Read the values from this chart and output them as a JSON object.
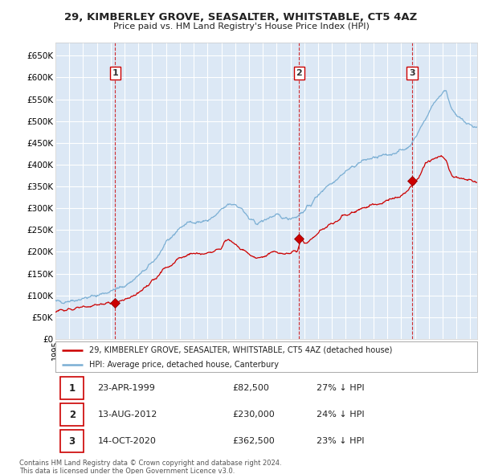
{
  "title": "29, KIMBERLEY GROVE, SEASALTER, WHITSTABLE, CT5 4AZ",
  "subtitle": "Price paid vs. HM Land Registry's House Price Index (HPI)",
  "legend_line1": "29, KIMBERLEY GROVE, SEASALTER, WHITSTABLE, CT5 4AZ (detached house)",
  "legend_line2": "HPI: Average price, detached house, Canterbury",
  "footer1": "Contains HM Land Registry data © Crown copyright and database right 2024.",
  "footer2": "This data is licensed under the Open Government Licence v3.0.",
  "sale_color": "#cc0000",
  "hpi_color": "#7bafd4",
  "background_color": "#ffffff",
  "plot_bg_color": "#dce8f5",
  "grid_color": "#ffffff",
  "ylim": [
    0,
    680000
  ],
  "yticks": [
    0,
    50000,
    100000,
    150000,
    200000,
    250000,
    300000,
    350000,
    400000,
    450000,
    500000,
    550000,
    600000,
    650000
  ],
  "sales": [
    {
      "date_num": 1999.31,
      "price": 82500,
      "label": "1"
    },
    {
      "date_num": 2012.62,
      "price": 230000,
      "label": "2"
    },
    {
      "date_num": 2020.79,
      "price": 362500,
      "label": "3"
    }
  ],
  "sale_annotations": [
    {
      "label": "1",
      "date": "23-APR-1999",
      "price": "£82,500",
      "pct": "27% ↓ HPI"
    },
    {
      "label": "2",
      "date": "13-AUG-2012",
      "price": "£230,000",
      "pct": "24% ↓ HPI"
    },
    {
      "label": "3",
      "date": "14-OCT-2020",
      "price": "£362,500",
      "pct": "23% ↓ HPI"
    }
  ],
  "vline_years": [
    1999.31,
    2012.62,
    2020.79
  ],
  "xmin": 1995.0,
  "xmax": 2025.5,
  "hpi_anchors": [
    [
      1995.0,
      85000
    ],
    [
      1995.5,
      86000
    ],
    [
      1996.0,
      88000
    ],
    [
      1996.5,
      90000
    ],
    [
      1997.0,
      93000
    ],
    [
      1997.5,
      96000
    ],
    [
      1998.0,
      100000
    ],
    [
      1998.5,
      105000
    ],
    [
      1999.0,
      110000
    ],
    [
      1999.5,
      115000
    ],
    [
      2000.0,
      122000
    ],
    [
      2000.5,
      132000
    ],
    [
      2001.0,
      145000
    ],
    [
      2001.5,
      158000
    ],
    [
      2002.0,
      175000
    ],
    [
      2002.5,
      195000
    ],
    [
      2003.0,
      218000
    ],
    [
      2003.5,
      238000
    ],
    [
      2004.0,
      255000
    ],
    [
      2004.5,
      265000
    ],
    [
      2005.0,
      270000
    ],
    [
      2005.5,
      268000
    ],
    [
      2006.0,
      272000
    ],
    [
      2006.5,
      280000
    ],
    [
      2007.0,
      295000
    ],
    [
      2007.5,
      308000
    ],
    [
      2008.0,
      310000
    ],
    [
      2008.5,
      298000
    ],
    [
      2009.0,
      275000
    ],
    [
      2009.5,
      265000
    ],
    [
      2010.0,
      270000
    ],
    [
      2010.5,
      280000
    ],
    [
      2011.0,
      282000
    ],
    [
      2011.5,
      278000
    ],
    [
      2012.0,
      278000
    ],
    [
      2012.5,
      282000
    ],
    [
      2013.0,
      295000
    ],
    [
      2013.5,
      310000
    ],
    [
      2014.0,
      330000
    ],
    [
      2014.5,
      348000
    ],
    [
      2015.0,
      360000
    ],
    [
      2015.5,
      372000
    ],
    [
      2016.0,
      385000
    ],
    [
      2016.5,
      395000
    ],
    [
      2017.0,
      405000
    ],
    [
      2017.5,
      412000
    ],
    [
      2018.0,
      415000
    ],
    [
      2018.5,
      418000
    ],
    [
      2019.0,
      422000
    ],
    [
      2019.5,
      428000
    ],
    [
      2020.0,
      432000
    ],
    [
      2020.5,
      440000
    ],
    [
      2021.0,
      460000
    ],
    [
      2021.5,
      490000
    ],
    [
      2022.0,
      520000
    ],
    [
      2022.5,
      548000
    ],
    [
      2023.0,
      565000
    ],
    [
      2023.25,
      570000
    ],
    [
      2023.5,
      545000
    ],
    [
      2023.75,
      525000
    ],
    [
      2024.0,
      510000
    ],
    [
      2024.5,
      500000
    ],
    [
      2025.0,
      490000
    ],
    [
      2025.5,
      485000
    ]
  ],
  "prop_anchors": [
    [
      1995.0,
      63000
    ],
    [
      1995.5,
      65000
    ],
    [
      1996.0,
      67000
    ],
    [
      1996.5,
      69000
    ],
    [
      1997.0,
      72000
    ],
    [
      1997.5,
      75000
    ],
    [
      1998.0,
      78000
    ],
    [
      1998.5,
      80000
    ],
    [
      1999.0,
      81000
    ],
    [
      1999.5,
      84000
    ],
    [
      2000.0,
      90000
    ],
    [
      2000.5,
      98000
    ],
    [
      2001.0,
      108000
    ],
    [
      2001.5,
      118000
    ],
    [
      2002.0,
      132000
    ],
    [
      2002.5,
      148000
    ],
    [
      2003.0,
      163000
    ],
    [
      2003.5,
      175000
    ],
    [
      2004.0,
      186000
    ],
    [
      2004.5,
      192000
    ],
    [
      2005.0,
      196000
    ],
    [
      2005.5,
      194000
    ],
    [
      2006.0,
      196000
    ],
    [
      2006.5,
      200000
    ],
    [
      2007.0,
      210000
    ],
    [
      2007.25,
      225000
    ],
    [
      2007.5,
      228000
    ],
    [
      2007.75,
      222000
    ],
    [
      2008.0,
      215000
    ],
    [
      2008.5,
      205000
    ],
    [
      2009.0,
      192000
    ],
    [
      2009.5,
      185000
    ],
    [
      2010.0,
      188000
    ],
    [
      2010.5,
      195000
    ],
    [
      2011.0,
      200000
    ],
    [
      2011.5,
      195000
    ],
    [
      2012.0,
      196000
    ],
    [
      2012.25,
      198000
    ],
    [
      2012.5,
      200000
    ],
    [
      2012.75,
      230000
    ],
    [
      2013.0,
      218000
    ],
    [
      2013.5,
      228000
    ],
    [
      2014.0,
      243000
    ],
    [
      2014.5,
      255000
    ],
    [
      2015.0,
      265000
    ],
    [
      2015.5,
      274000
    ],
    [
      2016.0,
      283000
    ],
    [
      2016.5,
      290000
    ],
    [
      2017.0,
      298000
    ],
    [
      2017.5,
      305000
    ],
    [
      2018.0,
      308000
    ],
    [
      2018.5,
      312000
    ],
    [
      2019.0,
      318000
    ],
    [
      2019.5,
      325000
    ],
    [
      2020.0,
      330000
    ],
    [
      2020.5,
      340000
    ],
    [
      2021.0,
      362500
    ],
    [
      2021.25,
      370000
    ],
    [
      2021.5,
      385000
    ],
    [
      2021.75,
      400000
    ],
    [
      2022.0,
      408000
    ],
    [
      2022.5,
      415000
    ],
    [
      2023.0,
      420000
    ],
    [
      2023.25,
      410000
    ],
    [
      2023.5,
      385000
    ],
    [
      2023.75,
      372000
    ],
    [
      2024.0,
      370000
    ],
    [
      2024.5,
      368000
    ],
    [
      2025.0,
      365000
    ],
    [
      2025.5,
      360000
    ]
  ]
}
